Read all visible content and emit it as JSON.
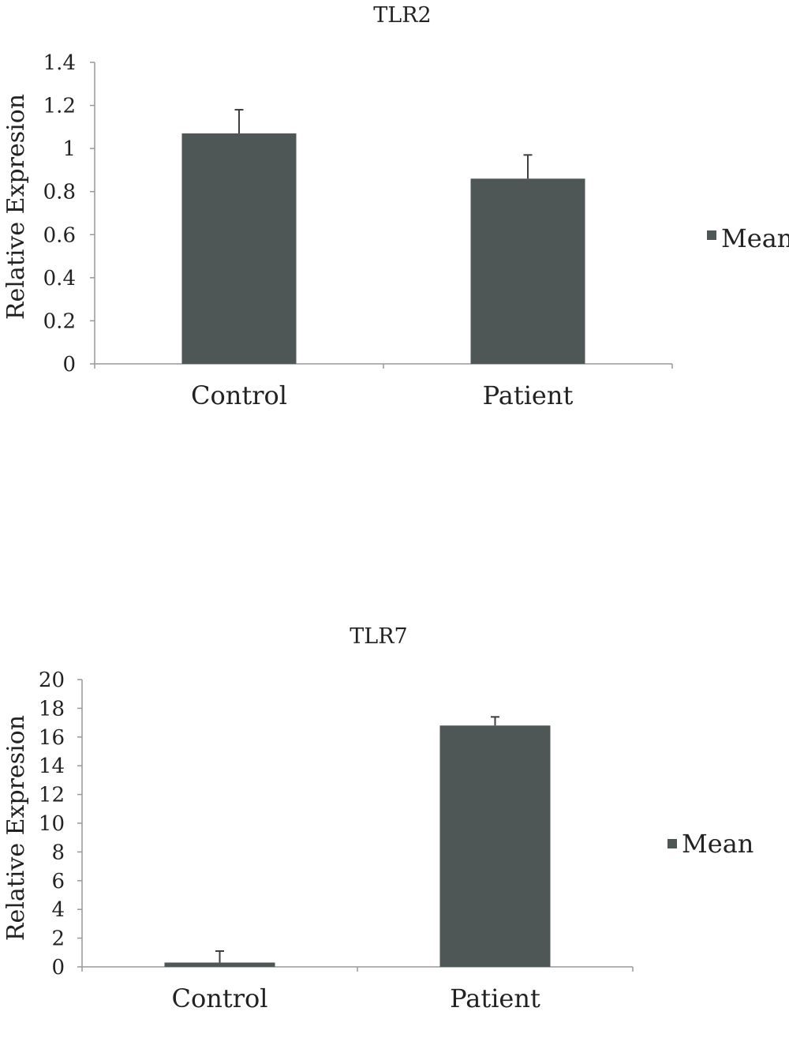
{
  "chart_data": [
    {
      "type": "bar",
      "title": "TLR2",
      "xlabel": "",
      "ylabel": "Relative Expresion",
      "categories": [
        "Control",
        "Patient"
      ],
      "series": [
        {
          "name": "Mean",
          "values": [
            1.07,
            0.86
          ],
          "errors": [
            0.11,
            0.11
          ]
        }
      ],
      "ylim": [
        0,
        1.4
      ],
      "yticks": [
        "0",
        "0.2",
        "0.4",
        "0.6",
        "0.8",
        "1",
        "1.2",
        "1.4"
      ],
      "legend": "right",
      "grid": false,
      "bar_color": "#4f5656"
    },
    {
      "type": "bar",
      "title": "TLR7",
      "xlabel": "",
      "ylabel": "Relative Expresion",
      "categories": [
        "Control",
        "Patient"
      ],
      "series": [
        {
          "name": "Mean",
          "values": [
            0.3,
            16.8
          ],
          "errors": [
            0.8,
            0.6
          ]
        }
      ],
      "ylim": [
        0,
        20
      ],
      "yticks": [
        "0",
        "2",
        "4",
        "6",
        "8",
        "10",
        "12",
        "14",
        "16",
        "18",
        "20"
      ],
      "legend": "right",
      "grid": false,
      "bar_color": "#4f5656"
    }
  ]
}
